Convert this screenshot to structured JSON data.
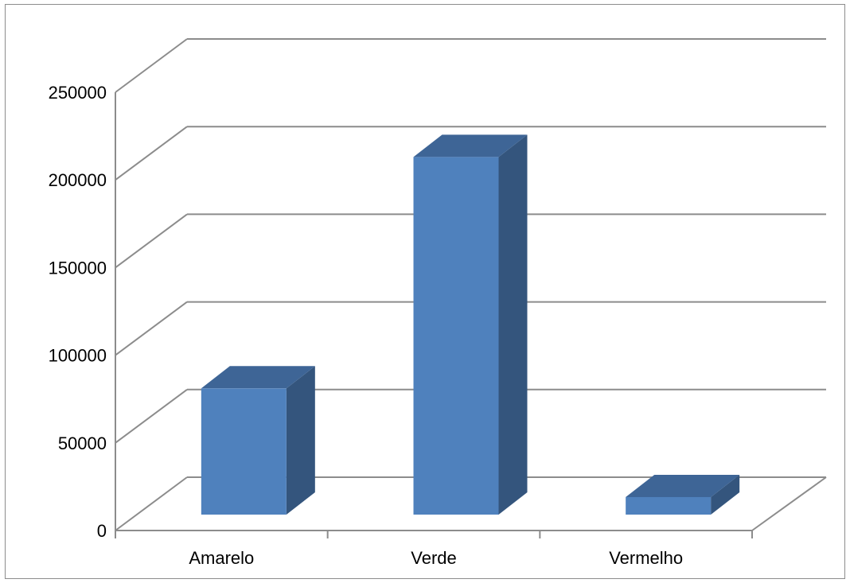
{
  "chart_data": {
    "type": "bar",
    "style": "3d-column",
    "categories": [
      "Amarelo",
      "Verde",
      "Vermelho"
    ],
    "values": [
      72000,
      204000,
      10000
    ],
    "title": "",
    "xlabel": "",
    "ylabel": "",
    "ylim": [
      0,
      250000
    ],
    "yticks": [
      "0",
      "50000",
      "100000",
      "150000",
      "200000",
      "250000"
    ],
    "grid": true,
    "legend": "none",
    "colors": {
      "bar_front": "#4F81BD",
      "bar_top": "#3E6596",
      "bar_side": "#34557D",
      "gridline": "#8C8C8C",
      "axis": "#8C8C8C",
      "border": "#8C8C8C"
    }
  }
}
